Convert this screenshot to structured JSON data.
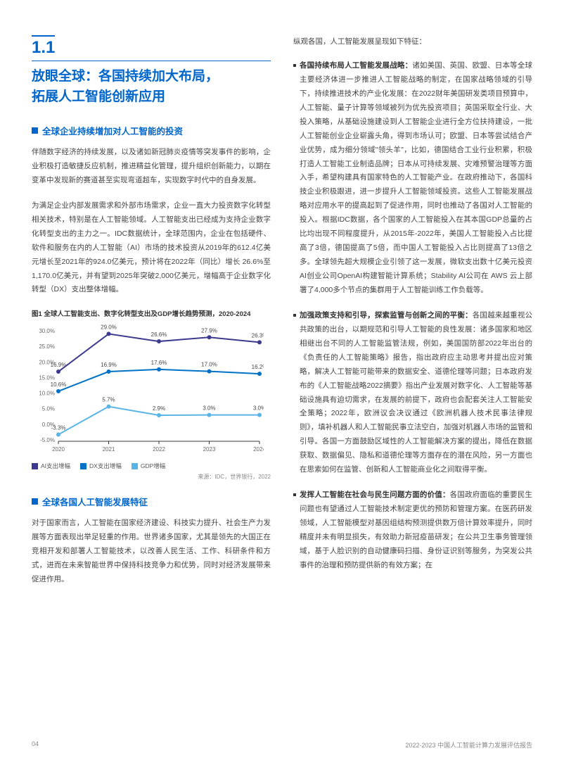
{
  "section": {
    "number": "1.1",
    "title_l1": "放眼全球：各国持续加大布局，",
    "title_l2": "拓展人工智能创新应用"
  },
  "sub1": {
    "heading": "全球企业持续增加对人工智能的投资",
    "p1": "伴随数字经济的持续发展，以及诸如新冠肺炎疫情等突发事件的影响，企业积极打造敏捷反应机制，推进精益化管理，提升组织创新能力，以期在变革中发现新的赛道甚至实现弯道超车，实现数字时代中的自身发展。",
    "p2": "为满足企业内部发展需求和外部市场需求，企业一直大力投资数字化转型相关技术，特别是在人工智能领域。人工智能支出已经成为支持企业数字化转型支出的主力之一。IDC数据统计，全球范围内，企业在包括硬件、软件和服务在内的人工智能（AI）市场的技术投资从2019年的612.4亿美元增长至2021年的924.0亿美元，预计将在2022年（同比）增长 26.6%至1,170.0亿美元，并有望到2025年突破2,000亿美元，增幅高于企业数字化转型（DX）支出整体增幅。"
  },
  "figure1": {
    "caption": "图1 全球人工智能支出、数字化转型支出及GDP增长趋势预测，2020-2024",
    "source": "来源：IDC，世界银行，2022",
    "x_labels": [
      "2020",
      "2021",
      "2022",
      "2023",
      "2024"
    ],
    "y_ticks": [
      "-5.0%",
      "0.0%",
      "5.0%",
      "10.0%",
      "15.0%",
      "20.0%",
      "25.0%",
      "30.0%"
    ],
    "ylim": [
      -5,
      30
    ],
    "series_ai": {
      "label": "AI支出增幅",
      "color": "#3b3a8f",
      "points": [
        16.9,
        29.0,
        26.6,
        27.9,
        26.3
      ]
    },
    "series_dx": {
      "label": "DX支出增幅",
      "color": "#0072c6",
      "points": [
        10.6,
        16.9,
        17.6,
        17.0,
        16.2
      ]
    },
    "series_gdp": {
      "label": "GDP增幅",
      "color": "#5ab4e6",
      "points": [
        -3.3,
        5.7,
        2.9,
        3.0,
        3.0
      ]
    },
    "label_fontsize": 8,
    "axis_fontsize": 8,
    "background": "#ffffff",
    "axis_color": "#333333"
  },
  "sub2": {
    "heading": "全球各国人工智能发展特征",
    "p1": "对于国家而言，人工智能在国家经济建设、科技实力提升、社会生产力发展等方面表现出举足轻重的作用。世界诸多国家，尤其是领先的大国正在竞相开发和部署人工智能技术，以改善人民生活、工作、科研条件和方式，进而在未来智能世界中保持科技竞争力和优势，同时对经济发展带来促进作用。"
  },
  "right": {
    "intro": "纵观各国，人工智能发展呈现如下特征：",
    "b1_title": "各国持续布局人工智能发展战略：",
    "b1_text": "诸如美国、英国、欧盟、日本等全球主要经济体进一步推进人工智能战略的制定，在国家战略领域的引导下，持续推进技术的产业化发展：在2022财年美国研发类项目预算中，人工智能、量子计算等领域被列为优先投资项目；英国采取全行业、大投入策略，从基础设施建设到人工智能企业进行全方位扶持建设，一批人工智能创业企业崭露头角，得到市场认可；欧盟、日本等尝试结合产业优势，成为细分领域\"领头羊\"，比如，德国结合工业行业积累，积极打造人工智能工业制造品牌；日本从可持续发展、灾难预警治理等方面入手，希望构建具有国家特色的人工智能产业。在政府推动下，各国科技企业积极跟进，进一步提升人工智能领域投资。这些人工智能发展战略对应用水平的提高起到了促进作用，同时也推动了各国对人工智能的投入。根据IDC数据，各个国家的人工智能投入在其本国GDP总量的占比均出现不同程度提升，从2015年-2022年，美国人工智能投入占比提高了3倍，德国提高了5倍，而中国人工智能投入占比则提高了13倍之多。全球领先超大规模企业引领了这一发展，微软支出数十亿美元投资AI创业公司OpenAI构建智能计算系统；Stability AI公司在 AWS 云上部署了4,000多个节点的集群用于人工智能训练工作负载等。",
    "b2_title": "加强政策支持和引导，探索监管与创新之间的平衡：",
    "b2_text": "各国越来越重视公共政策的出台，以期规范和引导人工智能的良性发展：诸多国家和地区相继出台不同的人工智能监管法规，例如，美国国防部2022年出台的《负责任的人工智能策略》报告，指出政府应主动思考并提出应对策略，解决人工智能可能带来的数据安全、道德伦理等问题；日本政府发布的《人工智能战略2022摘要》指出产业发展对数字化、人工智能等基础设施具有迫切需求，在发展的前提下，政府也会配套关注人工智能安全策略；2022年，欧洲议会决议通过《欧洲机器人技术民事法律规则》，填补机器人和人工智能民事立法空白，加强对机器人市场的监管和引导。各国一方面鼓励区域性的人工智能解决方案的提出，降低在数据获取、数据偏见、隐私和道德伦理等方面存在的潜在风险，另一方面也在思索如何在监管、创新和人工智能商业化之间取得平衡。",
    "b3_title": "发挥人工智能在社会与民生问题方面的价值：",
    "b3_text": "各国政府面临的重要民生问题也有望通过人工智能技术制定更优的预防和管理方案。在医药研发领域，人工智能模型对基因组结构预测提供数万倍计算效率提升，同时精度并未有明显损失，有效助力新冠疫苗研发；在公共卫生事务管理领域，基于人脸识别的自动健康码扫描、身份证识别等服务，为突发公共事件的治理和预防提供新的有效方案；在"
  },
  "footer": {
    "page": "04",
    "doc": "2022-2023 中国人工智能计算力发展评估报告"
  }
}
